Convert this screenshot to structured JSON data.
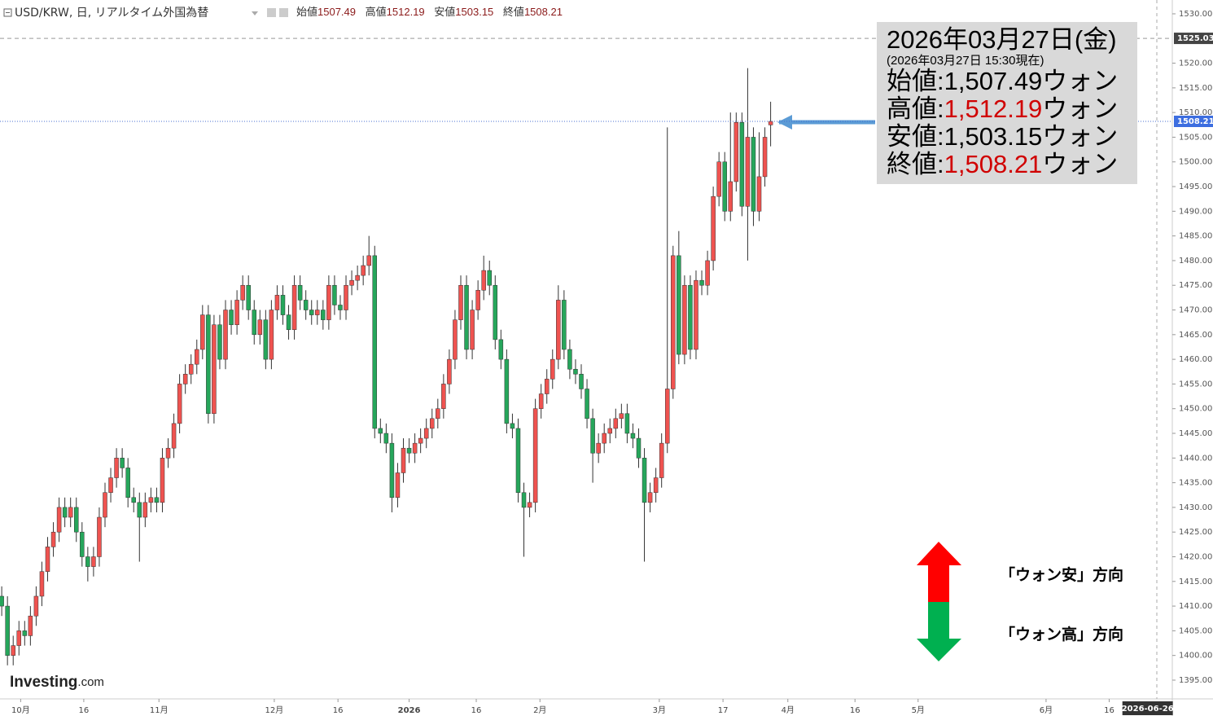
{
  "chart_data": {
    "type": "candlestick",
    "header": {
      "symbol": "USD/KRW, 日, リアルタイム外国為替",
      "open_label": "始値",
      "high_label": "高値",
      "low_label": "安値",
      "close_label": "終値"
    },
    "logo": [
      "Investing",
      ".com"
    ],
    "up_color": "#ef5350",
    "down_color": "#26a65b",
    "open": [
      1412,
      1410,
      1400,
      1402,
      1405,
      1404,
      1408,
      1412,
      1417,
      1422,
      1425,
      1430,
      1428,
      1430,
      1425,
      1420,
      1418,
      1420,
      1428,
      1433,
      1436,
      1440,
      1438,
      1432,
      1431,
      1428,
      1431,
      1432,
      1431,
      1440,
      1442,
      1447,
      1455,
      1457,
      1459,
      1462,
      1469,
      1449,
      1467,
      1460,
      1470,
      1467,
      1472,
      1475,
      1470,
      1465,
      1468,
      1460,
      1470,
      1473,
      1469,
      1466,
      1475,
      1472,
      1470,
      1469,
      1470,
      1468,
      1475,
      1471,
      1470,
      1475,
      1476,
      1477,
      1479,
      1481,
      1446,
      1445,
      1443,
      1432,
      1437,
      1442,
      1441,
      1443,
      1444,
      1446,
      1448,
      1450,
      1455,
      1460,
      1468,
      1475,
      1462,
      1470,
      1474,
      1478,
      1475,
      1464,
      1460,
      1447,
      1446,
      1433,
      1430,
      1431,
      1450,
      1453,
      1456,
      1460,
      1472,
      1462,
      1458,
      1457,
      1454,
      1448,
      1441,
      1443,
      1445,
      1446,
      1448,
      1449,
      1445,
      1444,
      1440,
      1431,
      1433,
      1436,
      1443,
      1454,
      1481,
      1461,
      1475,
      1462,
      1476,
      1475,
      1480,
      1493,
      1500,
      1490,
      1496,
      1508,
      1491,
      1505,
      1490,
      1497,
      1507.49
    ],
    "high": [
      1414,
      1412,
      1404,
      1407,
      1407,
      1410,
      1414,
      1419,
      1424,
      1427,
      1432,
      1432,
      1432,
      1432,
      1427,
      1422,
      1422,
      1430,
      1435,
      1438,
      1442,
      1442,
      1440,
      1434,
      1433,
      1433,
      1434,
      1434,
      1442,
      1444,
      1449,
      1457,
      1459,
      1461,
      1464,
      1471,
      1471,
      1469,
      1469,
      1472,
      1472,
      1474,
      1477,
      1477,
      1472,
      1470,
      1470,
      1472,
      1475,
      1475,
      1471,
      1477,
      1477,
      1474,
      1472,
      1472,
      1472,
      1477,
      1477,
      1473,
      1477,
      1478,
      1479,
      1481,
      1485,
      1483,
      1448,
      1447,
      1445,
      1439,
      1444,
      1444,
      1445,
      1446,
      1448,
      1450,
      1452,
      1457,
      1462,
      1470,
      1477,
      1477,
      1472,
      1476,
      1481,
      1480,
      1477,
      1466,
      1462,
      1449,
      1448,
      1435,
      1433,
      1452,
      1455,
      1458,
      1462,
      1475,
      1474,
      1464,
      1460,
      1459,
      1456,
      1450,
      1445,
      1447,
      1448,
      1450,
      1451,
      1451,
      1447,
      1446,
      1442,
      1435,
      1438,
      1445,
      1507,
      1483,
      1486,
      1477,
      1477,
      1478,
      1478,
      1482,
      1495,
      1502,
      1502,
      1510,
      1510,
      1510,
      1519,
      1507,
      1506,
      1507,
      1512.19
    ],
    "low": [
      1408,
      1398,
      1398,
      1400,
      1402,
      1402,
      1406,
      1410,
      1415,
      1420,
      1423,
      1426,
      1426,
      1423,
      1418,
      1415,
      1416,
      1418,
      1426,
      1431,
      1434,
      1436,
      1430,
      1429,
      1419,
      1426,
      1429,
      1429,
      1429,
      1438,
      1440,
      1445,
      1453,
      1455,
      1457,
      1460,
      1447,
      1447,
      1458,
      1458,
      1465,
      1465,
      1470,
      1468,
      1463,
      1463,
      1458,
      1458,
      1468,
      1467,
      1464,
      1464,
      1470,
      1468,
      1467,
      1467,
      1466,
      1466,
      1469,
      1468,
      1468,
      1473,
      1474,
      1475,
      1477,
      1444,
      1443,
      1441,
      1429,
      1430,
      1435,
      1439,
      1439,
      1441,
      1442,
      1444,
      1446,
      1448,
      1453,
      1458,
      1466,
      1460,
      1460,
      1468,
      1472,
      1473,
      1462,
      1458,
      1445,
      1444,
      1431,
      1420,
      1428,
      1429,
      1448,
      1451,
      1454,
      1458,
      1460,
      1456,
      1455,
      1452,
      1446,
      1435,
      1439,
      1441,
      1443,
      1444,
      1446,
      1443,
      1442,
      1438,
      1419,
      1429,
      1431,
      1434,
      1441,
      1452,
      1459,
      1459,
      1460,
      1460,
      1473,
      1473,
      1478,
      1491,
      1488,
      1488,
      1494,
      1489,
      1480,
      1487,
      1488,
      1495,
      1503.15
    ],
    "close": [
      1410,
      1400,
      1402,
      1405,
      1404,
      1408,
      1412,
      1417,
      1422,
      1425,
      1430,
      1428,
      1430,
      1425,
      1420,
      1418,
      1420,
      1428,
      1433,
      1436,
      1440,
      1438,
      1432,
      1431,
      1428,
      1431,
      1432,
      1431,
      1440,
      1442,
      1447,
      1455,
      1457,
      1459,
      1462,
      1469,
      1449,
      1467,
      1460,
      1470,
      1467,
      1472,
      1475,
      1470,
      1465,
      1468,
      1460,
      1470,
      1473,
      1469,
      1466,
      1475,
      1472,
      1470,
      1469,
      1470,
      1468,
      1475,
      1471,
      1470,
      1475,
      1476,
      1477,
      1479,
      1481,
      1446,
      1445,
      1443,
      1432,
      1437,
      1442,
      1441,
      1443,
      1444,
      1446,
      1448,
      1450,
      1455,
      1460,
      1468,
      1475,
      1462,
      1470,
      1474,
      1478,
      1475,
      1464,
      1460,
      1447,
      1446,
      1433,
      1430,
      1431,
      1450,
      1453,
      1456,
      1460,
      1472,
      1462,
      1458,
      1457,
      1454,
      1448,
      1441,
      1443,
      1445,
      1446,
      1448,
      1449,
      1445,
      1444,
      1440,
      1431,
      1433,
      1436,
      1443,
      1454,
      1481,
      1461,
      1475,
      1462,
      1476,
      1475,
      1480,
      1493,
      1500,
      1490,
      1496,
      1508,
      1491,
      1505,
      1490,
      1497,
      1505,
      1508.21
    ],
    "xlim": [
      -0.3,
      204
    ],
    "xticks": [
      {
        "value": 3.3,
        "label": "10月"
      },
      {
        "value": 14.3,
        "label": "16"
      },
      {
        "value": 27.4,
        "label": "11月"
      },
      {
        "value": 47.5,
        "label": "12月"
      },
      {
        "value": 58.6,
        "label": "16"
      },
      {
        "value": 71,
        "label": "2026"
      },
      {
        "value": 82.7,
        "label": "16"
      },
      {
        "value": 93.8,
        "label": "2月"
      },
      {
        "value": 114.6,
        "label": "3月"
      },
      {
        "value": 125.7,
        "label": "17"
      },
      {
        "value": 137,
        "label": "4月"
      },
      {
        "value": 148.7,
        "label": "16"
      },
      {
        "value": 159.7,
        "label": "5月"
      },
      {
        "value": 182,
        "label": "6月"
      },
      {
        "value": 193,
        "label": "16"
      }
    ],
    "cursor_date": {
      "value": 199.7,
      "label": "2026-06-26"
    },
    "ylim": [
      1391.2,
      1532.8
    ],
    "yticks": [
      {
        "value": 1395,
        "label": "1395.00"
      },
      {
        "value": 1400,
        "label": "1400.00"
      },
      {
        "value": 1405,
        "label": "1405.00"
      },
      {
        "value": 1410,
        "label": "1410.00"
      },
      {
        "value": 1415,
        "label": "1415.00"
      },
      {
        "value": 1420,
        "label": "1420.00"
      },
      {
        "value": 1425,
        "label": "1425.00"
      },
      {
        "value": 1430,
        "label": "1430.00"
      },
      {
        "value": 1435,
        "label": "1435.00"
      },
      {
        "value": 1440,
        "label": "1440.00"
      },
      {
        "value": 1445,
        "label": "1445.00"
      },
      {
        "value": 1450,
        "label": "1450.00"
      },
      {
        "value": 1455,
        "label": "1455.00"
      },
      {
        "value": 1460,
        "label": "1460.00"
      },
      {
        "value": 1465,
        "label": "1465.00"
      },
      {
        "value": 1470,
        "label": "1470.00"
      },
      {
        "value": 1475,
        "label": "1475.00"
      },
      {
        "value": 1480,
        "label": "1480.00"
      },
      {
        "value": 1485,
        "label": "1485.00"
      },
      {
        "value": 1490,
        "label": "1490.00"
      },
      {
        "value": 1495,
        "label": "1495.00"
      },
      {
        "value": 1500,
        "label": "1500.00"
      },
      {
        "value": 1505,
        "label": "1505.00"
      },
      {
        "value": 1510,
        "label": "1510.00"
      },
      {
        "value": 1515,
        "label": "1515.00"
      },
      {
        "value": 1520,
        "label": "1520.00"
      },
      {
        "value": 1530,
        "label": "1530.00"
      }
    ],
    "reference_line": 1525.03,
    "annotation": {
      "date": "2026年03月27日(金)",
      "asof": "(2026年03月27日 15:30現在)",
      "rows": [
        {
          "label": "始値:",
          "value": "1,507.49",
          "unit": "ウォン",
          "highlight": false
        },
        {
          "label": "高値:",
          "value": "1,512.19",
          "unit": "ウォン",
          "highlight": true
        },
        {
          "label": "安値:",
          "value": "1,503.15",
          "unit": "ウォン",
          "highlight": false
        },
        {
          "label": "終値:",
          "value": "1,508.21",
          "unit": "ウォン",
          "highlight": true
        }
      ]
    },
    "direction": {
      "up": "「ウォン安」方向",
      "down": "「ウォン高」方向"
    }
  }
}
